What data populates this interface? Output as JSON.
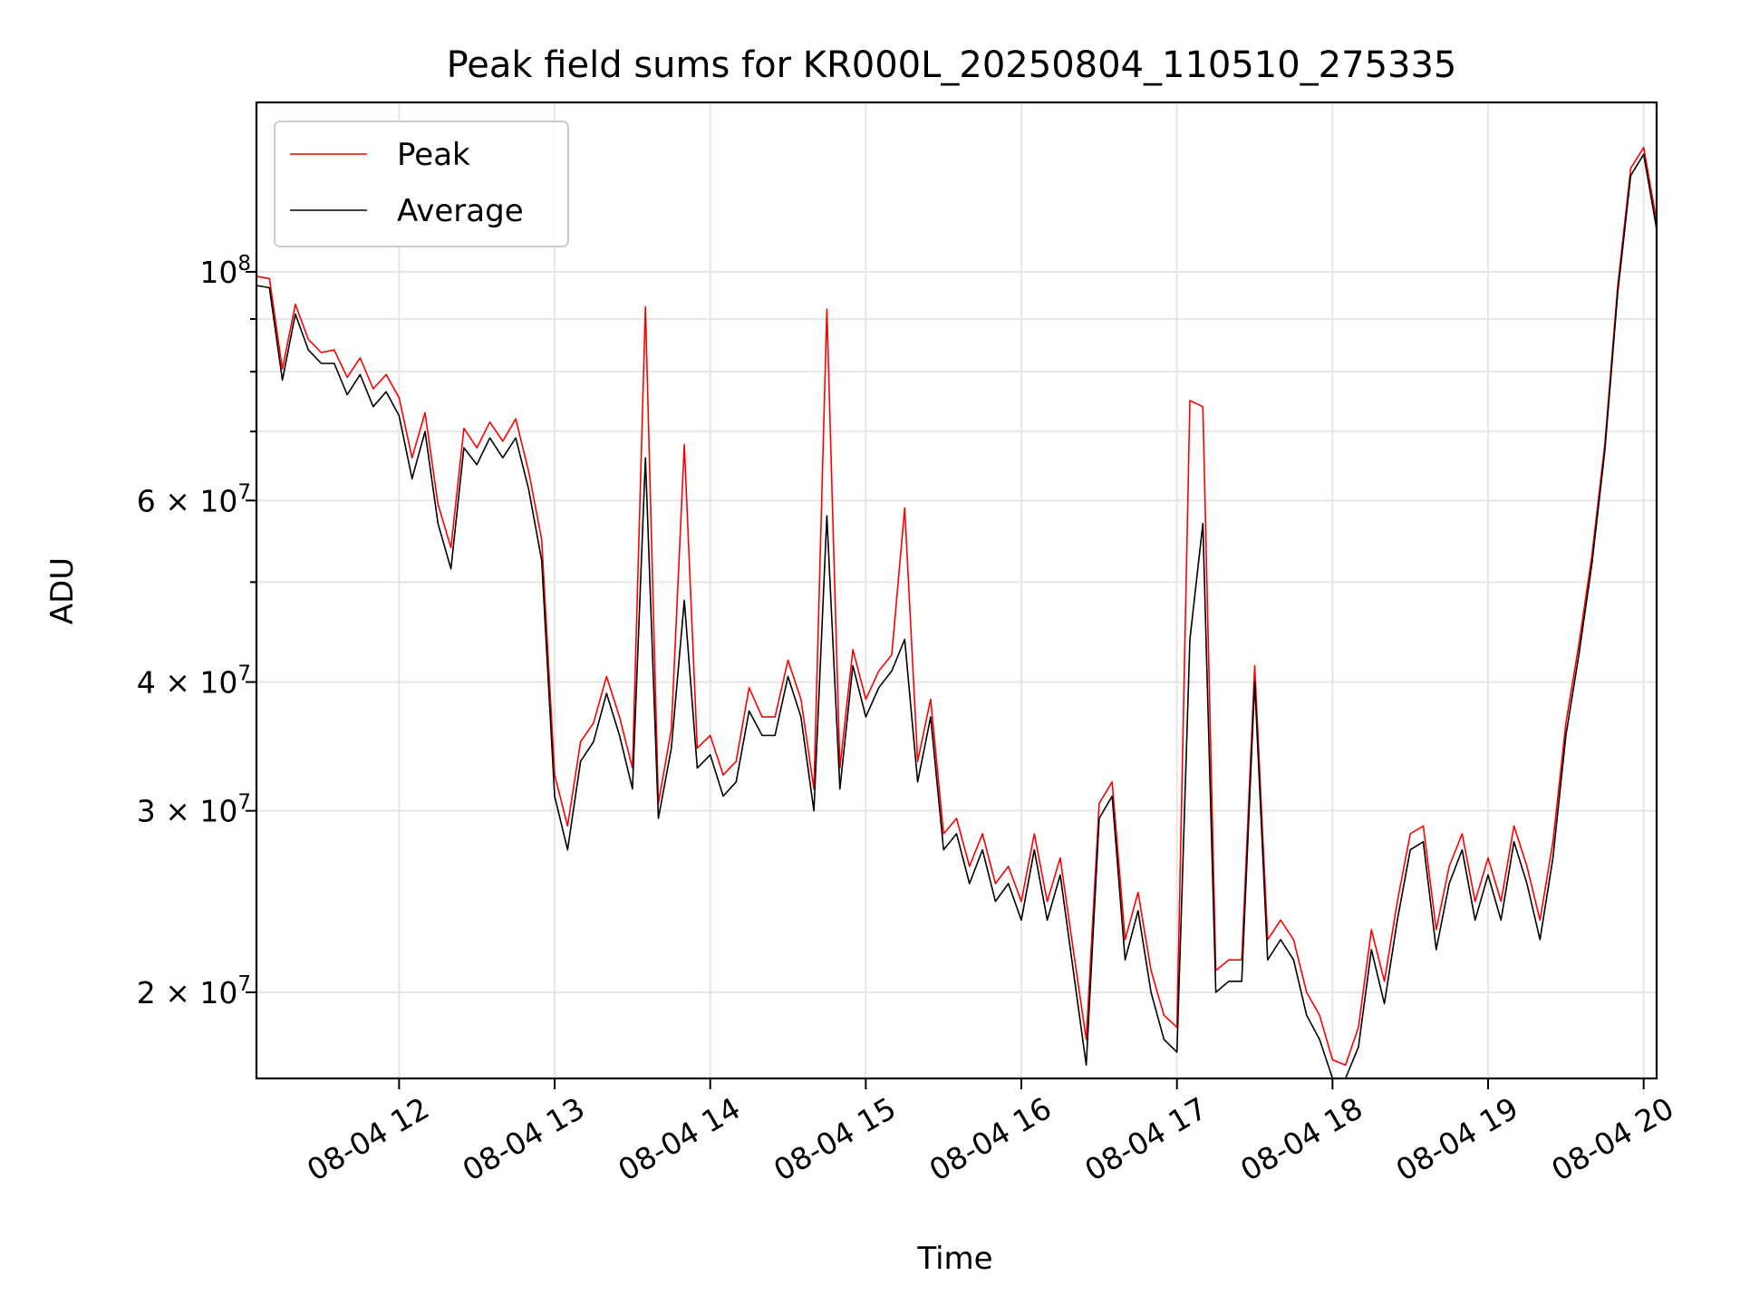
{
  "chart_data": {
    "type": "line",
    "title": "Peak field sums for KR000L_20250804_110510_275335",
    "xlabel": "Time",
    "ylabel": "ADU",
    "yscale": "log",
    "grid": true,
    "legend_position": "top-left",
    "xlim": [
      "2025-08-04 11:05",
      "2025-08-04 20:05"
    ],
    "ylim": [
      16500000,
      146000000
    ],
    "x_ticks": [
      {
        "value": "2025-08-04 12:00",
        "label": "08-04 12"
      },
      {
        "value": "2025-08-04 13:00",
        "label": "08-04 13"
      },
      {
        "value": "2025-08-04 14:00",
        "label": "08-04 14"
      },
      {
        "value": "2025-08-04 15:00",
        "label": "08-04 15"
      },
      {
        "value": "2025-08-04 16:00",
        "label": "08-04 16"
      },
      {
        "value": "2025-08-04 17:00",
        "label": "08-04 17"
      },
      {
        "value": "2025-08-04 18:00",
        "label": "08-04 18"
      },
      {
        "value": "2025-08-04 19:00",
        "label": "08-04 19"
      },
      {
        "value": "2025-08-04 20:00",
        "label": "08-04 20"
      }
    ],
    "y_ticks": [
      {
        "value": 20000000,
        "label": "2 × 10",
        "exp": "7"
      },
      {
        "value": 30000000,
        "label": "3 × 10",
        "exp": "7"
      },
      {
        "value": 40000000,
        "label": "4 × 10",
        "exp": "7"
      },
      {
        "value": 60000000,
        "label": "6 × 10",
        "exp": "7"
      },
      {
        "value": 100000000,
        "label": "10",
        "exp": "8"
      }
    ],
    "y_minor_ticks": [
      50000000,
      70000000,
      80000000,
      90000000
    ],
    "x": [
      "11:05",
      "11:10",
      "11:15",
      "11:20",
      "11:25",
      "11:30",
      "11:35",
      "11:40",
      "11:45",
      "11:50",
      "11:55",
      "12:00",
      "12:05",
      "12:10",
      "12:15",
      "12:20",
      "12:25",
      "12:30",
      "12:35",
      "12:40",
      "12:45",
      "12:50",
      "12:55",
      "13:00",
      "13:05",
      "13:10",
      "13:15",
      "13:20",
      "13:25",
      "13:30",
      "13:35",
      "13:40",
      "13:45",
      "13:50",
      "13:55",
      "14:00",
      "14:05",
      "14:10",
      "14:15",
      "14:20",
      "14:25",
      "14:30",
      "14:35",
      "14:40",
      "14:45",
      "14:50",
      "14:55",
      "15:00",
      "15:05",
      "15:10",
      "15:15",
      "15:20",
      "15:25",
      "15:30",
      "15:35",
      "15:40",
      "15:45",
      "15:50",
      "15:55",
      "16:00",
      "16:05",
      "16:10",
      "16:15",
      "16:20",
      "16:25",
      "16:30",
      "16:35",
      "16:40",
      "16:45",
      "16:50",
      "16:55",
      "17:00",
      "17:05",
      "17:10",
      "17:15",
      "17:20",
      "17:25",
      "17:30",
      "17:35",
      "17:40",
      "17:45",
      "17:50",
      "17:55",
      "18:00",
      "18:05",
      "18:10",
      "18:15",
      "18:20",
      "18:25",
      "18:30",
      "18:35",
      "18:40",
      "18:45",
      "18:50",
      "18:55",
      "19:00",
      "19:05",
      "19:10",
      "19:15",
      "19:20",
      "19:25",
      "19:30",
      "19:35",
      "19:40",
      "19:45",
      "19:50",
      "19:55",
      "20:00",
      "20:05"
    ],
    "series": [
      {
        "name": "Peak",
        "color": "#ff0000",
        "values": [
          99000000,
          98500000,
          80500000,
          93000000,
          86000000,
          83500000,
          84000000,
          79000000,
          82500000,
          77000000,
          79500000,
          75500000,
          66000000,
          73000000,
          59500000,
          54000000,
          70500000,
          67500000,
          71500000,
          68500000,
          72000000,
          64000000,
          55000000,
          32500000,
          29000000,
          35000000,
          36500000,
          40500000,
          37000000,
          33000000,
          92500000,
          30500000,
          36000000,
          68000000,
          34500000,
          35500000,
          32500000,
          33500000,
          39500000,
          37000000,
          37000000,
          42000000,
          38500000,
          31500000,
          92000000,
          33000000,
          43000000,
          38500000,
          41000000,
          42500000,
          59000000,
          33500000,
          38500000,
          28500000,
          29500000,
          26500000,
          28500000,
          25500000,
          26500000,
          24500000,
          28500000,
          24500000,
          27000000,
          22000000,
          18000000,
          30500000,
          32000000,
          22500000,
          25000000,
          21000000,
          19000000,
          18500000,
          75000000,
          74000000,
          21000000,
          21500000,
          21500000,
          41500000,
          22500000,
          23500000,
          22500000,
          20000000,
          19000000,
          17200000,
          17000000,
          18500000,
          23000000,
          20500000,
          24500000,
          28500000,
          29000000,
          23000000,
          26500000,
          28500000,
          24500000,
          27000000,
          24500000,
          29000000,
          26500000,
          23500000,
          28000000,
          36500000,
          43500000,
          53000000,
          68000000,
          97000000,
          126000000,
          132000000,
          112000000
        ]
      },
      {
        "name": "Average",
        "color": "#000000",
        "values": [
          97000000,
          96500000,
          78500000,
          91000000,
          84000000,
          81500000,
          81500000,
          76000000,
          79500000,
          74000000,
          76500000,
          72500000,
          63000000,
          70000000,
          57000000,
          51500000,
          67500000,
          65000000,
          69000000,
          66000000,
          69000000,
          61500000,
          52500000,
          31000000,
          27500000,
          33500000,
          35000000,
          39000000,
          35500000,
          31500000,
          66000000,
          29500000,
          34500000,
          48000000,
          33000000,
          34000000,
          31000000,
          32000000,
          37500000,
          35500000,
          35500000,
          40500000,
          37000000,
          30000000,
          58000000,
          31500000,
          41500000,
          37000000,
          39500000,
          41000000,
          44000000,
          32000000,
          37000000,
          27500000,
          28500000,
          25500000,
          27500000,
          24500000,
          25500000,
          23500000,
          27500000,
          23500000,
          26000000,
          21000000,
          17000000,
          29500000,
          31000000,
          21500000,
          24000000,
          20000000,
          18000000,
          17500000,
          44000000,
          57000000,
          20000000,
          20500000,
          20500000,
          40000000,
          21500000,
          22500000,
          21500000,
          19000000,
          18000000,
          16500000,
          16300000,
          17700000,
          22000000,
          19500000,
          23500000,
          27500000,
          28000000,
          22000000,
          25500000,
          27500000,
          23500000,
          26000000,
          23500000,
          28000000,
          25500000,
          22500000,
          27000000,
          35500000,
          42500000,
          52000000,
          67000000,
          95500000,
          124000000,
          130000000,
          110000000
        ]
      }
    ]
  }
}
